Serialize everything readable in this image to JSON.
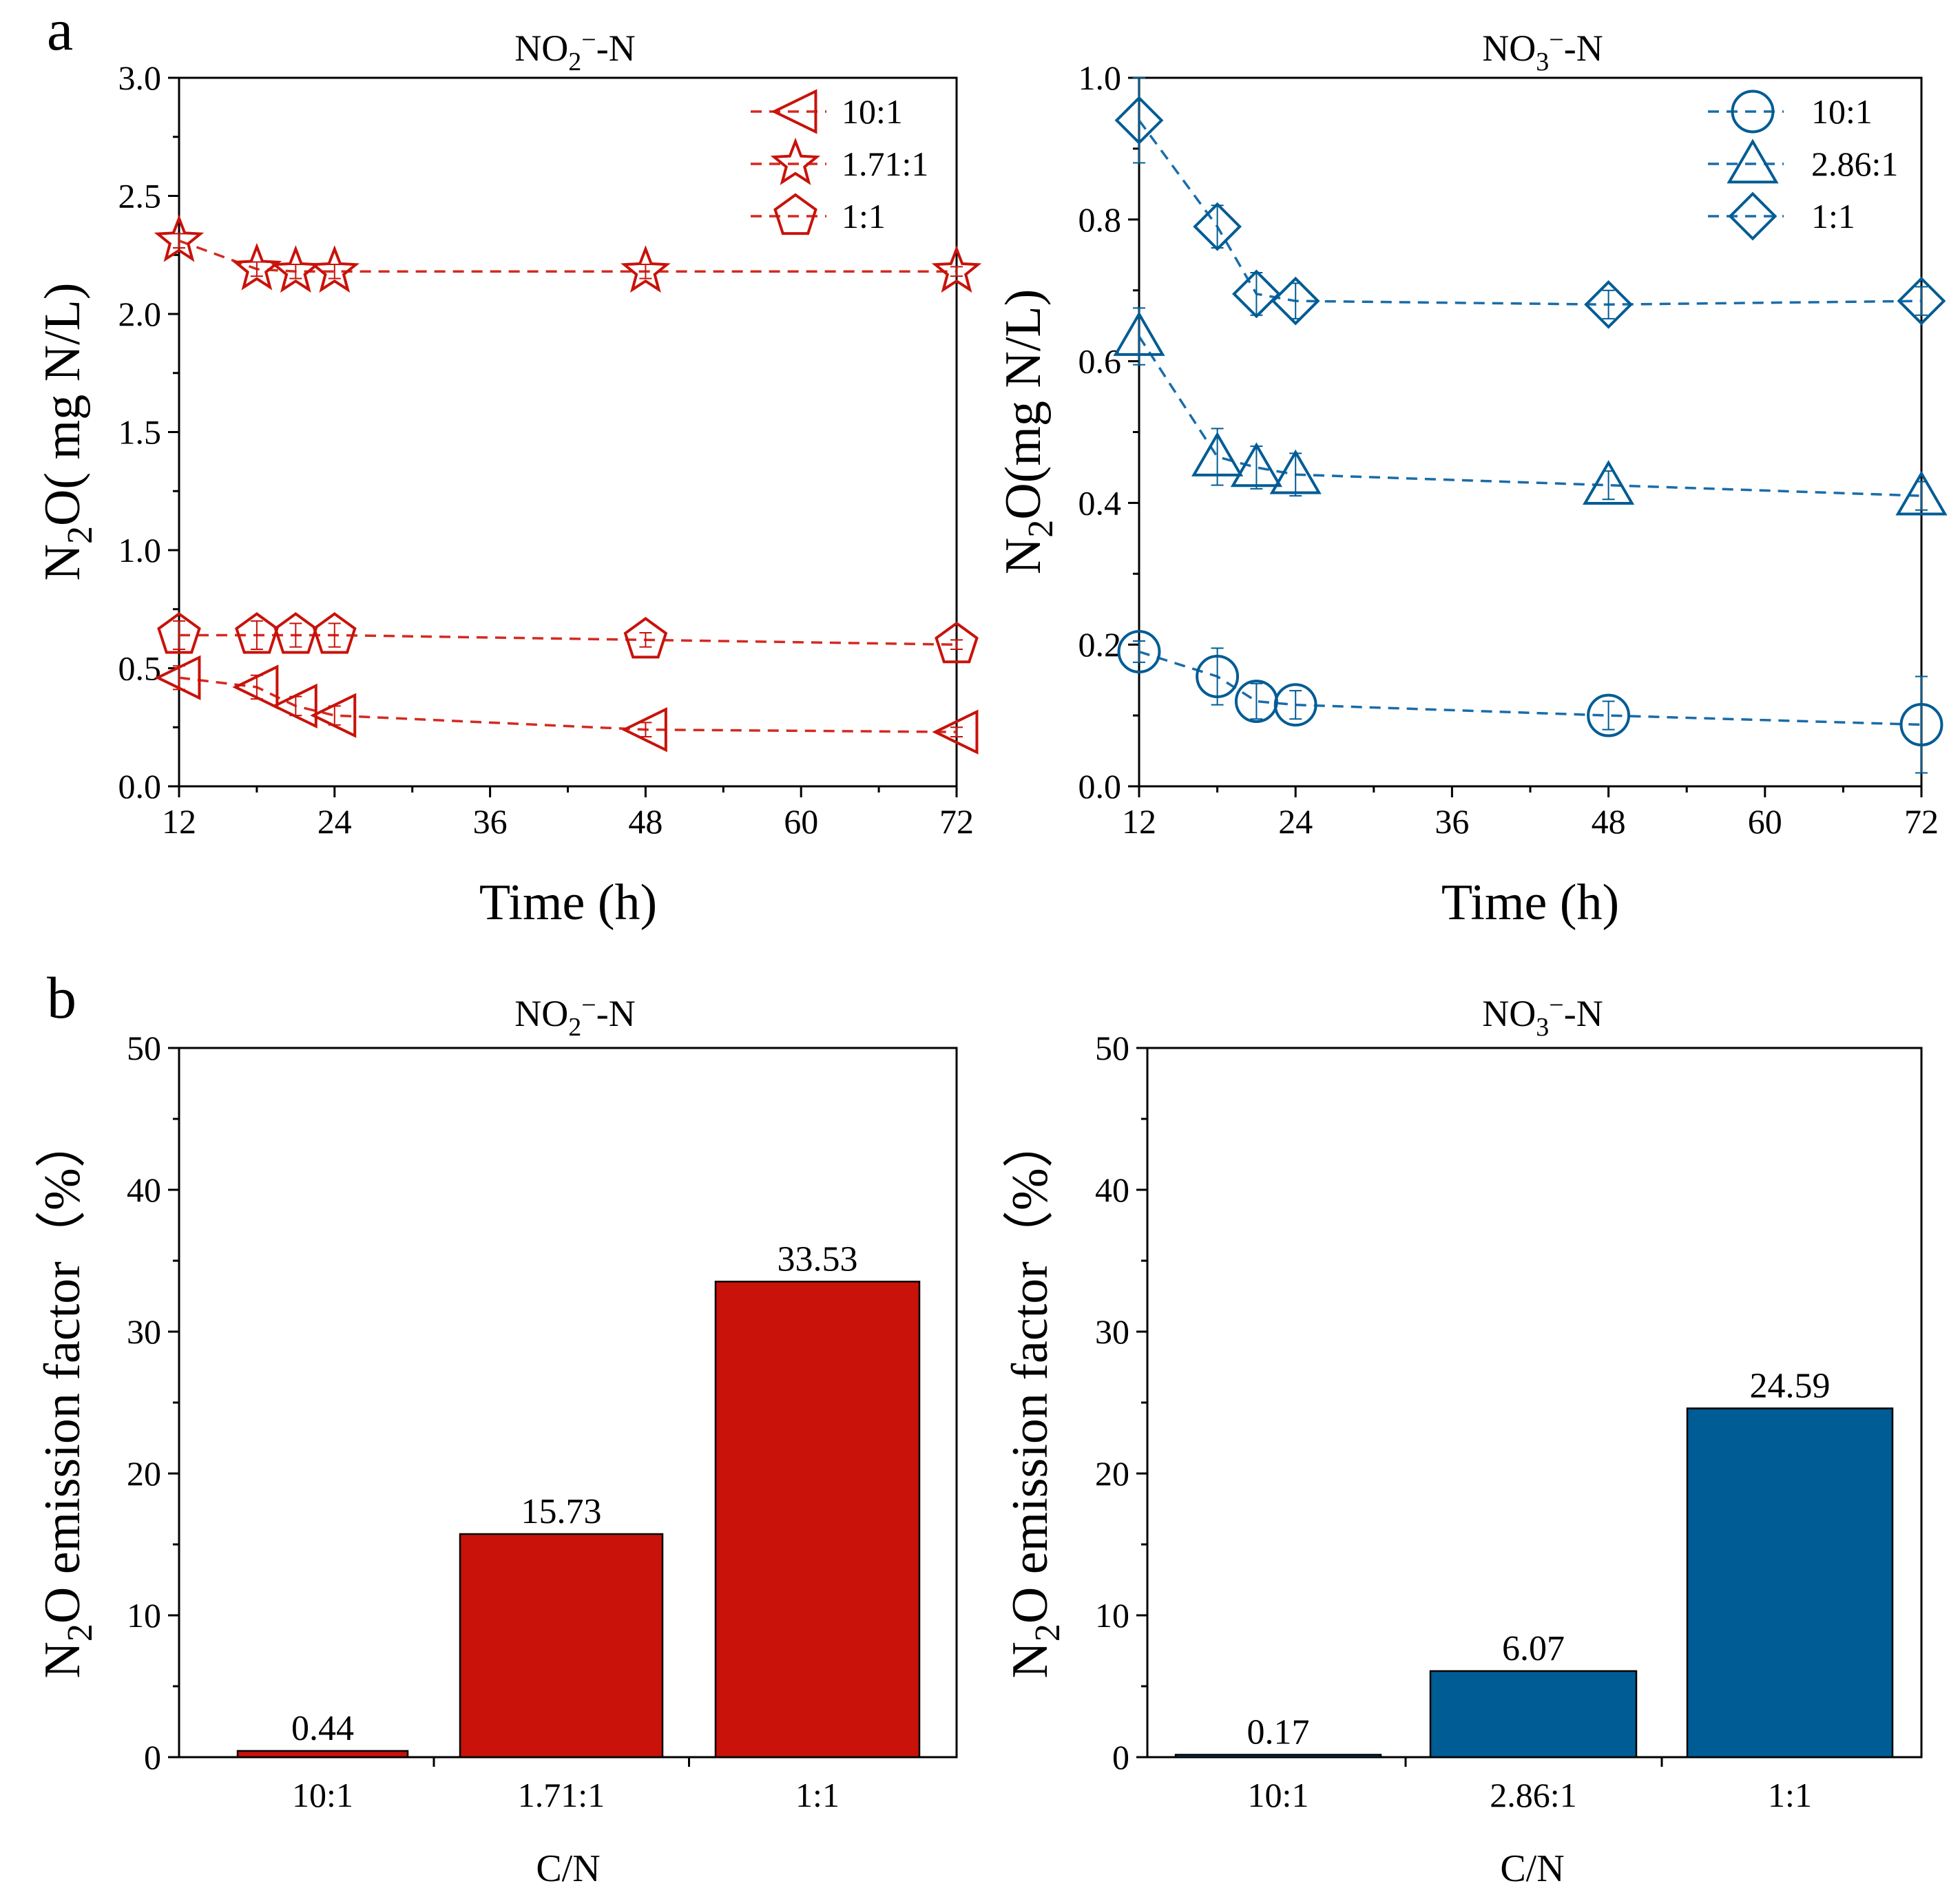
{
  "panel_labels": [
    "a",
    "b"
  ],
  "colors": {
    "red": "#C8120A",
    "blue": "#005C94",
    "red_line": "#D42A20",
    "blue_line": "#1A6CA8"
  },
  "chart_data": [
    {
      "id": "a1",
      "type": "line",
      "title": "NO2⁻-N",
      "xlabel": "Time (h)",
      "ylabel": "N2O( mg N/L)",
      "x": [
        12,
        18,
        21,
        24,
        48,
        72
      ],
      "xticks": [
        12,
        24,
        36,
        48,
        60,
        72
      ],
      "xtick_labels": [
        "12",
        "24",
        "36",
        "48",
        "60",
        "72"
      ],
      "xlim": [
        12,
        72
      ],
      "ylim": [
        0,
        3.0
      ],
      "yticks": [
        0.0,
        0.5,
        1.0,
        1.5,
        2.0,
        2.5,
        3.0
      ],
      "ytick_labels": [
        "0.0",
        "0.5",
        "1.0",
        "1.5",
        "2.0",
        "2.5",
        "3.0"
      ],
      "color": "red",
      "legend_position": "top-right",
      "series": [
        {
          "name": "10:1",
          "marker": "triangle-left",
          "values": [
            0.46,
            0.42,
            0.34,
            0.3,
            0.24,
            0.23
          ],
          "errors": [
            0.05,
            0.05,
            0.04,
            0.04,
            0.03,
            0.02
          ]
        },
        {
          "name": "1.71:1",
          "marker": "star",
          "values": [
            2.31,
            2.19,
            2.18,
            2.18,
            2.18,
            2.18
          ],
          "errors": [
            0.03,
            0.03,
            0.03,
            0.03,
            0.03,
            0.02
          ]
        },
        {
          "name": "1:1",
          "marker": "pentagon",
          "values": [
            0.64,
            0.64,
            0.64,
            0.64,
            0.62,
            0.6
          ],
          "errors": [
            0.06,
            0.06,
            0.05,
            0.05,
            0.03,
            0.02
          ]
        }
      ]
    },
    {
      "id": "a2",
      "type": "line",
      "title": "NO3⁻-N",
      "xlabel": "Time (h)",
      "ylabel": "N2O(mg N/L)",
      "x": [
        12,
        18,
        21,
        24,
        48,
        72
      ],
      "xticks": [
        12,
        24,
        36,
        48,
        60,
        72
      ],
      "xtick_labels": [
        "12",
        "24",
        "36",
        "48",
        "60",
        "72"
      ],
      "xlim": [
        12,
        72
      ],
      "ylim": [
        0,
        1.0
      ],
      "yticks": [
        0.0,
        0.2,
        0.4,
        0.6,
        0.8,
        1.0
      ],
      "ytick_labels": [
        "0.0",
        "0.2",
        "0.4",
        "0.6",
        "0.8",
        "1.0"
      ],
      "color": "blue",
      "legend_position": "top-right",
      "series": [
        {
          "name": "10:1",
          "marker": "circle",
          "values": [
            0.19,
            0.155,
            0.12,
            0.115,
            0.1,
            0.087
          ],
          "errors": [
            0.015,
            0.04,
            0.025,
            0.02,
            0.02,
            0.068
          ]
        },
        {
          "name": "2.86:1",
          "marker": "triangle-up",
          "values": [
            0.635,
            0.465,
            0.45,
            0.44,
            0.425,
            0.41
          ],
          "errors": [
            0.04,
            0.04,
            0.03,
            0.03,
            0.02,
            0.02
          ]
        },
        {
          "name": "1:1",
          "marker": "diamond",
          "values": [
            0.94,
            0.79,
            0.695,
            0.685,
            0.68,
            0.685
          ],
          "errors": [
            0.06,
            0.03,
            0.03,
            0.025,
            0.02,
            0.02
          ]
        }
      ]
    },
    {
      "id": "b1",
      "type": "bar",
      "title": "NO2⁻-N",
      "xlabel": "C/N",
      "ylabel": "N2O emission factor（%）",
      "categories": [
        "10:1",
        "1.71:1",
        "1:1"
      ],
      "values": [
        0.44,
        15.73,
        33.53
      ],
      "value_labels": [
        "0.44",
        "15.73",
        "33.53"
      ],
      "ylim": [
        0,
        50
      ],
      "yticks": [
        0,
        10,
        20,
        30,
        40,
        50
      ],
      "ytick_labels": [
        "0",
        "10",
        "20",
        "30",
        "40",
        "50"
      ],
      "color": "red"
    },
    {
      "id": "b2",
      "type": "bar",
      "title": "NO3⁻-N",
      "xlabel": "C/N",
      "ylabel": "N2O emission factor（%）",
      "categories": [
        "10:1",
        "2.86:1",
        "1:1"
      ],
      "values": [
        0.17,
        6.07,
        24.59
      ],
      "value_labels": [
        "0.17",
        "6.07",
        "24.59"
      ],
      "ylim": [
        0,
        50
      ],
      "yticks": [
        0,
        10,
        20,
        30,
        40,
        50
      ],
      "ytick_labels": [
        "0",
        "10",
        "20",
        "30",
        "40",
        "50"
      ],
      "color": "blue"
    }
  ]
}
